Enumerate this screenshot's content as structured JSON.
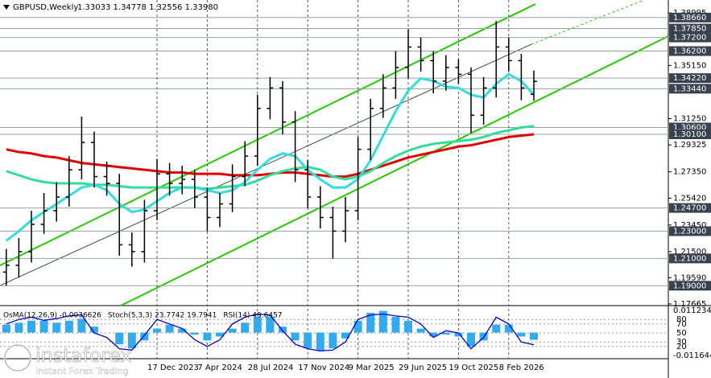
{
  "chart_data": {
    "type": "candlestick",
    "title": "GBPUSD,Weekly",
    "ohlc_text": "1.33033 1.34778 1.32556 1.33980",
    "categories": [
      null,
      null,
      null,
      null,
      null,
      null,
      null,
      null,
      null,
      null,
      null,
      null,
      "17 Dec 2023",
      null,
      null,
      null,
      "7 Apr 2024",
      null,
      null,
      null,
      "28 Jul 2024",
      null,
      null,
      null,
      "17 Nov 2024",
      null,
      null,
      null,
      "9 Mar 2025",
      null,
      null,
      null,
      "29 Jun 2025",
      null,
      null,
      null,
      "19 Oct 2025",
      null,
      null,
      null,
      "8 Feb 2026",
      null,
      null
    ],
    "open": [
      1.2,
      1.205,
      1.215,
      1.235,
      1.245,
      1.255,
      1.275,
      1.295,
      1.27,
      1.265,
      1.22,
      1.215,
      1.245,
      1.272,
      1.265,
      1.268,
      1.255,
      1.24,
      1.25,
      1.27,
      1.285,
      1.32,
      1.335,
      1.31,
      1.275,
      1.255,
      1.24,
      1.23,
      1.245,
      1.29,
      1.32,
      1.335,
      1.35,
      1.365,
      1.355,
      1.34,
      1.35,
      1.345,
      1.315,
      1.335,
      1.365,
      1.355,
      1.33033
    ],
    "high": [
      1.217,
      1.225,
      1.245,
      1.258,
      1.266,
      1.285,
      1.314,
      1.303,
      1.281,
      1.272,
      1.229,
      1.253,
      1.283,
      1.28,
      1.278,
      1.275,
      1.262,
      1.258,
      1.279,
      1.296,
      1.33,
      1.343,
      1.34,
      1.318,
      1.282,
      1.263,
      1.248,
      1.255,
      1.299,
      1.327,
      1.345,
      1.362,
      1.378,
      1.372,
      1.362,
      1.359,
      1.356,
      1.35,
      1.343,
      1.384,
      1.372,
      1.36,
      1.34778
    ],
    "low": [
      1.19,
      1.196,
      1.207,
      1.228,
      1.237,
      1.248,
      1.268,
      1.262,
      1.256,
      1.212,
      1.204,
      1.207,
      1.238,
      1.256,
      1.257,
      1.247,
      1.23,
      1.233,
      1.244,
      1.263,
      1.278,
      1.312,
      1.301,
      1.266,
      1.247,
      1.232,
      1.21,
      1.222,
      1.238,
      1.282,
      1.313,
      1.327,
      1.342,
      1.347,
      1.331,
      1.333,
      1.338,
      1.302,
      1.308,
      1.328,
      1.347,
      1.326,
      1.32556
    ],
    "close": [
      1.205,
      1.215,
      1.235,
      1.245,
      1.255,
      1.275,
      1.295,
      1.27,
      1.265,
      1.22,
      1.215,
      1.245,
      1.272,
      1.265,
      1.268,
      1.255,
      1.24,
      1.25,
      1.27,
      1.285,
      1.32,
      1.335,
      1.31,
      1.275,
      1.255,
      1.24,
      1.23,
      1.245,
      1.29,
      1.32,
      1.335,
      1.35,
      1.365,
      1.355,
      1.34,
      1.35,
      1.345,
      1.315,
      1.335,
      1.365,
      1.355,
      1.335,
      1.3398
    ],
    "moving_averages": [
      {
        "color": "#e00000",
        "values": [
          1.29,
          1.288,
          1.287,
          1.285,
          1.284,
          1.282,
          1.28,
          1.279,
          1.278,
          1.277,
          1.276,
          1.275,
          1.274,
          1.273,
          1.273,
          1.272,
          1.272,
          1.272,
          1.271,
          1.271,
          1.271,
          1.272,
          1.273,
          1.273,
          1.272,
          1.271,
          1.27,
          1.27,
          1.272,
          1.275,
          1.278,
          1.281,
          1.284,
          1.286,
          1.288,
          1.29,
          1.292,
          1.293,
          1.295,
          1.297,
          1.299,
          1.3,
          1.301
        ]
      },
      {
        "color": "#33dd99",
        "values": [
          1.274,
          1.271,
          1.268,
          1.266,
          1.265,
          1.265,
          1.265,
          1.264,
          1.264,
          1.263,
          1.262,
          1.262,
          1.262,
          1.262,
          1.262,
          1.262,
          1.261,
          1.262,
          1.263,
          1.264,
          1.267,
          1.271,
          1.274,
          1.276,
          1.277,
          1.275,
          1.27,
          1.268,
          1.27,
          1.274,
          1.28,
          1.285,
          1.289,
          1.292,
          1.294,
          1.295,
          1.296,
          1.297,
          1.299,
          1.302,
          1.304,
          1.306,
          1.307
        ]
      },
      {
        "color": "#33dddd",
        "values": [
          1.223,
          1.23,
          1.238,
          1.244,
          1.25,
          1.256,
          1.262,
          1.264,
          1.26,
          1.25,
          1.244,
          1.246,
          1.252,
          1.258,
          1.262,
          1.262,
          1.26,
          1.258,
          1.26,
          1.266,
          1.275,
          1.283,
          1.287,
          1.285,
          1.275,
          1.268,
          1.262,
          1.262,
          1.268,
          1.282,
          1.3,
          1.318,
          1.333,
          1.342,
          1.34,
          1.336,
          1.335,
          1.33,
          1.328,
          1.338,
          1.345,
          1.34,
          1.33
        ]
      }
    ],
    "ylim": [
      1.1766,
      1.3912
    ],
    "yticks": [
      {
        "value": 1.38995,
        "label": "1.38995"
      },
      {
        "value": 1.3515,
        "label": "1.35150"
      },
      {
        "value": 1.3125,
        "label": "1.31250"
      },
      {
        "value": 1.29325,
        "label": "1.29325"
      },
      {
        "value": 1.2735,
        "label": "1.27350"
      },
      {
        "value": 1.2542,
        "label": "1.25420"
      },
      {
        "value": 1.2345,
        "label": "1.23450"
      },
      {
        "value": 1.215,
        "label": "1.21500"
      },
      {
        "value": 1.1959,
        "label": "1.19590"
      },
      {
        "value": 1.17665,
        "label": "1.17665"
      }
    ],
    "levels": [
      {
        "value": 1.3866,
        "label": "1.38660"
      },
      {
        "value": 1.3785,
        "label": "1.37850"
      },
      {
        "value": 1.372,
        "label": "1.37200"
      },
      {
        "value": 1.362,
        "label": "1.36200"
      },
      {
        "value": 1.3422,
        "label": "1.34220"
      },
      {
        "value": 1.3344,
        "label": "1.33440"
      },
      {
        "value": 1.306,
        "label": "1.30600"
      },
      {
        "value": 1.301,
        "label": "1.30100"
      },
      {
        "value": 1.247,
        "label": "1.24700"
      },
      {
        "value": 1.23,
        "label": "1.23000"
      },
      {
        "value": 1.21,
        "label": "1.21000"
      },
      {
        "value": 1.19,
        "label": "1.19000"
      }
    ],
    "oscillator": {
      "labels": [
        "OsMA(12,26,9) -0.0036626",
        "Stoch(5,3,3) 23.7742 19.7941",
        "RSI(14) 49.6457"
      ],
      "osma_lim": [
        -0.011644,
        0.0112349
      ],
      "osma_color": "#33aaee",
      "osma": [
        0.004,
        0.005,
        0.006,
        0.006,
        0.005,
        0.006,
        0.007,
        0.003,
        0.0,
        -0.006,
        -0.008,
        -0.004,
        0.002,
        0.004,
        0.002,
        -0.001,
        -0.004,
        -0.002,
        0.002,
        0.005,
        0.008,
        0.008,
        0.003,
        -0.004,
        -0.008,
        -0.009,
        -0.008,
        -0.003,
        0.006,
        0.01,
        0.011,
        0.008,
        0.006,
        0.002,
        -0.002,
        -0.001,
        -0.002,
        -0.007,
        -0.004,
        0.004,
        0.004,
        -0.002,
        -0.0036626
      ],
      "stoch_lim": [
        0,
        100
      ],
      "stoch_ticks": [
        20,
        30,
        50,
        70,
        80
      ],
      "stoch_color": "#0000cc",
      "stoch": [
        70,
        80,
        85,
        78,
        82,
        88,
        90,
        50,
        40,
        15,
        12,
        45,
        80,
        70,
        60,
        35,
        20,
        35,
        70,
        85,
        92,
        90,
        55,
        25,
        15,
        10,
        12,
        30,
        80,
        90,
        92,
        88,
        85,
        70,
        40,
        55,
        50,
        15,
        40,
        85,
        70,
        30,
        23.7742
      ]
    },
    "logo": {
      "name": "instaforex",
      "tagline": "Instant Forex Trading"
    }
  }
}
